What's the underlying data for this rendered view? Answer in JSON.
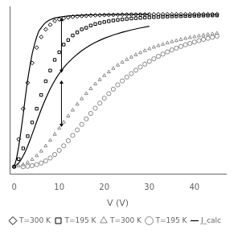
{
  "chart_data": {
    "type": "scatter",
    "xlabel": "V (V)",
    "xlim": [
      -1,
      47
    ],
    "ylim": [
      -0.05,
      1.05
    ],
    "xticks": [
      0,
      10,
      20,
      30,
      40
    ],
    "yticks": [],
    "tick_labels": "x",
    "grid": false,
    "legend": "lower right",
    "series": [
      {
        "name": "T=300 K",
        "type": "scatter",
        "marker": "diamond",
        "color": "black",
        "x": [
          0,
          1,
          2,
          3,
          4,
          5,
          6,
          7,
          8,
          9,
          10,
          11,
          12,
          13,
          14,
          15,
          16,
          17,
          18,
          19,
          20,
          21,
          22,
          23,
          24,
          25,
          26,
          27,
          28,
          29,
          30,
          31,
          32,
          33,
          34,
          35,
          36,
          37,
          38,
          39,
          40,
          41,
          42,
          43,
          44,
          45
        ],
        "values": [
          0.0,
          0.18,
          0.38,
          0.55,
          0.68,
          0.78,
          0.85,
          0.9,
          0.93,
          0.955,
          0.965,
          0.972,
          0.978,
          0.982,
          0.985,
          0.987,
          0.989,
          0.991,
          0.992,
          0.993,
          0.994,
          0.9945,
          0.995,
          0.9955,
          0.996,
          0.9965,
          0.997,
          0.9972,
          0.9974,
          0.9976,
          0.9978,
          0.998,
          0.9981,
          0.9982,
          0.9983,
          0.9984,
          0.9985,
          0.9986,
          0.9986,
          0.9987,
          0.9988,
          0.9988,
          0.9989,
          0.9989,
          0.999,
          0.999
        ]
      },
      {
        "name": "T=195 K",
        "type": "scatter",
        "marker": "square",
        "color": "black",
        "x": [
          0,
          1,
          2,
          3,
          4,
          5,
          6,
          7,
          8,
          9,
          10,
          11,
          12,
          13,
          14,
          15,
          16,
          17,
          18,
          19,
          20,
          21,
          22,
          23,
          24,
          25,
          26,
          27,
          28,
          29,
          30,
          31,
          32,
          33,
          34,
          35,
          36,
          37,
          38,
          39,
          40,
          41,
          42,
          43,
          44,
          45
        ],
        "values": [
          0.0,
          0.05,
          0.12,
          0.2,
          0.29,
          0.38,
          0.47,
          0.56,
          0.63,
          0.7,
          0.75,
          0.8,
          0.83,
          0.86,
          0.88,
          0.9,
          0.91,
          0.925,
          0.935,
          0.942,
          0.948,
          0.953,
          0.958,
          0.962,
          0.965,
          0.968,
          0.971,
          0.973,
          0.975,
          0.977,
          0.979,
          0.98,
          0.981,
          0.983,
          0.984,
          0.985,
          0.986,
          0.986,
          0.987,
          0.988,
          0.989,
          0.989,
          0.99,
          0.99,
          0.991,
          0.991
        ]
      },
      {
        "name": "T=300 K",
        "type": "scatter",
        "marker": "triangle",
        "color": "#888888",
        "x": [
          0,
          1,
          2,
          3,
          4,
          5,
          6,
          7,
          8,
          9,
          10,
          11,
          12,
          13,
          14,
          15,
          16,
          17,
          18,
          19,
          20,
          21,
          22,
          23,
          24,
          25,
          26,
          27,
          28,
          29,
          30,
          31,
          32,
          33,
          34,
          35,
          36,
          37,
          38,
          39,
          40,
          41,
          42,
          43,
          44,
          45
        ],
        "values": [
          0.0,
          0.005,
          0.014,
          0.028,
          0.047,
          0.072,
          0.102,
          0.136,
          0.173,
          0.212,
          0.252,
          0.292,
          0.332,
          0.371,
          0.409,
          0.445,
          0.479,
          0.511,
          0.542,
          0.57,
          0.597,
          0.621,
          0.644,
          0.665,
          0.684,
          0.702,
          0.718,
          0.733,
          0.747,
          0.76,
          0.772,
          0.783,
          0.793,
          0.802,
          0.811,
          0.819,
          0.826,
          0.833,
          0.84,
          0.846,
          0.851,
          0.857,
          0.861,
          0.866,
          0.87,
          0.874
        ]
      },
      {
        "name": "T=195 K",
        "type": "scatter",
        "marker": "circle",
        "color": "#888888",
        "x": [
          2,
          3,
          4,
          5,
          6,
          7,
          8,
          9,
          10,
          11,
          12,
          13,
          14,
          15,
          16,
          17,
          18,
          19,
          20,
          21,
          22,
          23,
          24,
          25,
          26,
          27,
          28,
          29,
          30,
          31,
          32,
          33,
          34,
          35,
          36,
          37,
          38,
          39,
          40,
          41,
          42,
          43,
          44,
          45
        ],
        "values": [
          0.0,
          0.003,
          0.007,
          0.014,
          0.024,
          0.038,
          0.057,
          0.08,
          0.107,
          0.137,
          0.17,
          0.205,
          0.241,
          0.277,
          0.313,
          0.349,
          0.383,
          0.416,
          0.449,
          0.479,
          0.508,
          0.536,
          0.562,
          0.587,
          0.61,
          0.632,
          0.653,
          0.672,
          0.69,
          0.707,
          0.723,
          0.738,
          0.752,
          0.765,
          0.777,
          0.788,
          0.799,
          0.808,
          0.817,
          0.826,
          0.834,
          0.841,
          0.848,
          0.855
        ]
      },
      {
        "name": "J_calc",
        "type": "line",
        "line_style": "solid",
        "color": "black",
        "x": [
          0.0,
          0.5,
          1.0,
          1.5,
          2.0,
          2.5,
          3.0,
          3.5,
          4.0,
          4.5,
          5.0,
          5.5,
          6.0,
          6.5,
          7.0,
          7.5,
          8.0,
          8.5,
          9.0,
          9.5,
          10.0,
          10.5,
          11.0,
          11.5,
          12.0,
          13.0,
          14.0,
          15.0,
          16.0,
          17.0,
          18.0,
          19.0,
          20.0,
          22.0,
          24.0,
          26.0,
          28.0,
          30.0
        ],
        "values": [
          0.0,
          0.05,
          0.13,
          0.23,
          0.34,
          0.46,
          0.57,
          0.66,
          0.74,
          0.8,
          0.85,
          0.89,
          0.91,
          0.93,
          0.945,
          0.955,
          0.963,
          0.969,
          0.974,
          0.977,
          0.98,
          0.982,
          0.984,
          0.986,
          0.987,
          0.99,
          0.991,
          0.993,
          0.994,
          0.995,
          0.996,
          0.996,
          0.997,
          0.997,
          0.998,
          0.998,
          0.999,
          0.999
        ]
      },
      {
        "name": "J_calc",
        "type": "line",
        "line_style": "solid",
        "color": "black",
        "x": [
          0.0,
          0.5,
          1.0,
          1.5,
          2.0,
          2.5,
          3.0,
          3.5,
          4.0,
          4.5,
          5.0,
          5.5,
          6.0,
          6.5,
          7.0,
          7.5,
          8.0,
          8.5,
          9.0,
          9.5,
          10.0,
          10.5,
          11.0,
          11.5,
          12.0,
          13.0,
          14.0,
          15.0,
          16.0,
          17.0,
          18.0,
          19.0,
          20.0,
          22.0,
          24.0,
          26.0,
          28.0,
          30.0
        ],
        "values": [
          0.0,
          0.01,
          0.025,
          0.045,
          0.07,
          0.1,
          0.135,
          0.173,
          0.213,
          0.254,
          0.295,
          0.335,
          0.374,
          0.411,
          0.446,
          0.479,
          0.51,
          0.538,
          0.564,
          0.588,
          0.61,
          0.63,
          0.649,
          0.666,
          0.682,
          0.711,
          0.737,
          0.76,
          0.78,
          0.798,
          0.814,
          0.828,
          0.841,
          0.863,
          0.881,
          0.896,
          0.909,
          0.92
        ]
      }
    ],
    "arrows": [
      {
        "x": 10.5,
        "y_top": 0.975,
        "y_bot": 0.615,
        "color": "black"
      },
      {
        "x": 10.5,
        "y_top": 0.565,
        "y_bot": 0.26,
        "color": "black"
      }
    ]
  }
}
